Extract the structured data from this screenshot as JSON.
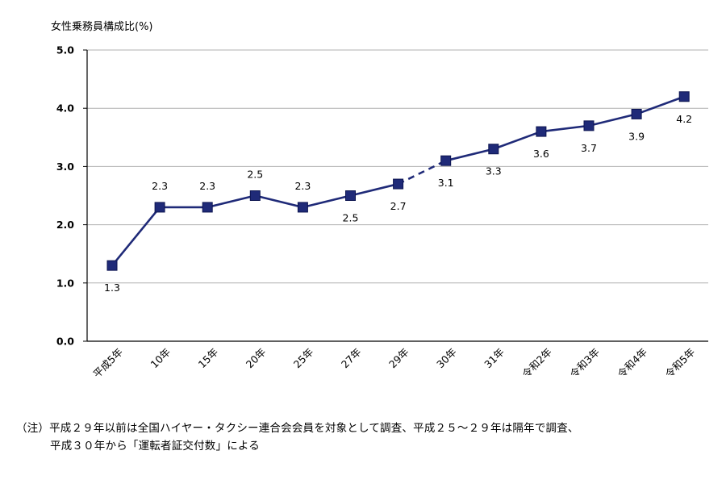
{
  "chart_data": {
    "type": "line",
    "title": "女性乗務員構成比(%)",
    "categories": [
      "平成5年",
      "10年",
      "15年",
      "20年",
      "25年",
      "27年",
      "29年",
      "30年",
      "31年",
      "令和2年",
      "令和3年",
      "令和4年",
      "令和5年"
    ],
    "values": [
      1.3,
      2.3,
      2.3,
      2.5,
      2.3,
      2.5,
      2.7,
      3.1,
      3.3,
      3.6,
      3.7,
      3.9,
      4.2
    ],
    "value_labels": [
      "1.3",
      "2.3",
      "2.3",
      "2.5",
      "2.3",
      "2.5",
      "2.7",
      "3.1",
      "3.3",
      "3.6",
      "3.7",
      "3.9",
      "4.2"
    ],
    "label_position": [
      "below",
      "above",
      "above",
      "above",
      "above",
      "below",
      "below",
      "below",
      "below",
      "below",
      "below",
      "below",
      "below"
    ],
    "dashed_segment_after_index": 6,
    "ylim": [
      0,
      5
    ],
    "yticks": [
      "0.0",
      "1.0",
      "2.0",
      "3.0",
      "4.0",
      "5.0"
    ],
    "grid": true,
    "line_color": "#1f2a78",
    "marker_color": "#1f2a78",
    "grid_color": "#b0b0b0"
  },
  "note": {
    "line1": "（注）平成２９年以前は全国ハイヤー・タクシー連合会会員を対象として調査、平成２５～２９年は隔年で調査、",
    "line2": "平成３０年から「運転者証交付数」による"
  }
}
